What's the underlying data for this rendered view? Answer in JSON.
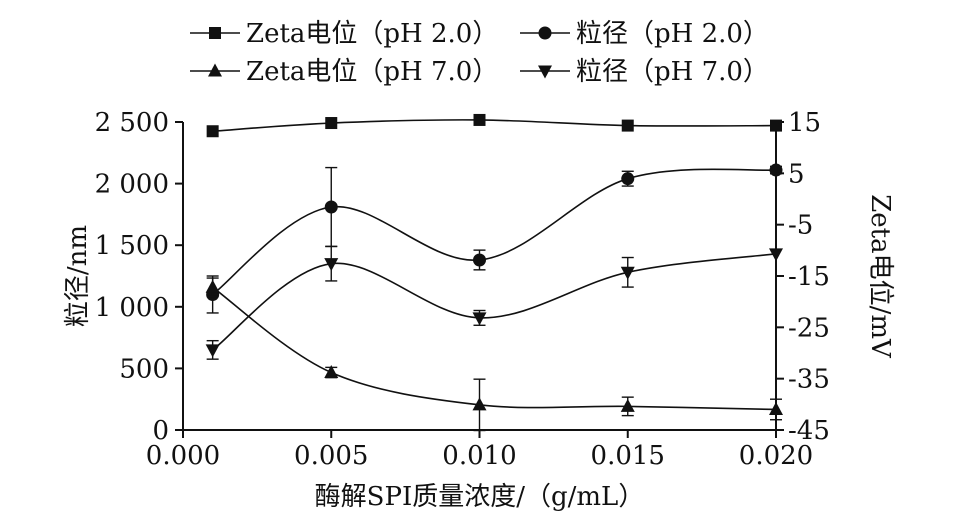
{
  "chart_data": {
    "type": "line",
    "xlabel": "酶解SPI质量浓度/（g/mL）",
    "ylabel_left": "粒径/nm",
    "ylabel_right": "Zeta电位/mV",
    "xlim": [
      0.0,
      0.02
    ],
    "ylim_left": [
      0,
      2500
    ],
    "ylim_right": [
      -45,
      15
    ],
    "x_ticks": [
      "0.000",
      "0.005",
      "0.010",
      "0.015",
      "0.020"
    ],
    "x_tick_values": [
      0.0,
      0.005,
      0.01,
      0.015,
      0.02
    ],
    "y_left_ticks": [
      "0",
      "500",
      "1 000",
      "1 500",
      "2 000",
      "2 500"
    ],
    "y_left_tick_values": [
      0,
      500,
      1000,
      1500,
      2000,
      2500
    ],
    "y_right_ticks": [
      "-45",
      "-35",
      "-25",
      "-15",
      "-5",
      "5",
      "15"
    ],
    "y_right_tick_values": [
      -45,
      -35,
      -25,
      -15,
      -5,
      5,
      15
    ],
    "legend_position": "top",
    "series": [
      {
        "name": "Zeta电位（pH 2.0）",
        "axis": "right",
        "marker": "square",
        "x": [
          0.001,
          0.005,
          0.01,
          0.015,
          0.02
        ],
        "y": [
          13.2,
          14.8,
          15.4,
          14.3,
          14.3
        ],
        "err": [
          0,
          0,
          0,
          0,
          0
        ]
      },
      {
        "name": "粒径（pH 2.0）",
        "axis": "left",
        "marker": "circle",
        "x": [
          0.001,
          0.005,
          0.01,
          0.015,
          0.02
        ],
        "y": [
          1100,
          1810,
          1380,
          2040,
          2110
        ],
        "err": [
          150,
          320,
          80,
          60,
          30
        ]
      },
      {
        "name": "Zeta电位（pH 7.0）",
        "axis": "right",
        "marker": "triangle-up",
        "x": [
          0.001,
          0.005,
          0.01,
          0.015,
          0.02
        ],
        "y": [
          -17.2,
          -33.8,
          -40.1,
          -40.4,
          -41.0
        ],
        "err": [
          1.8,
          1.0,
          5.0,
          1.8,
          2.0
        ]
      },
      {
        "name": "粒径（pH 7.0）",
        "axis": "left",
        "marker": "triangle-down",
        "x": [
          0.001,
          0.005,
          0.01,
          0.015,
          0.02
        ],
        "y": [
          650,
          1350,
          910,
          1280,
          1430
        ],
        "err": [
          75,
          140,
          60,
          120,
          0
        ]
      }
    ]
  }
}
